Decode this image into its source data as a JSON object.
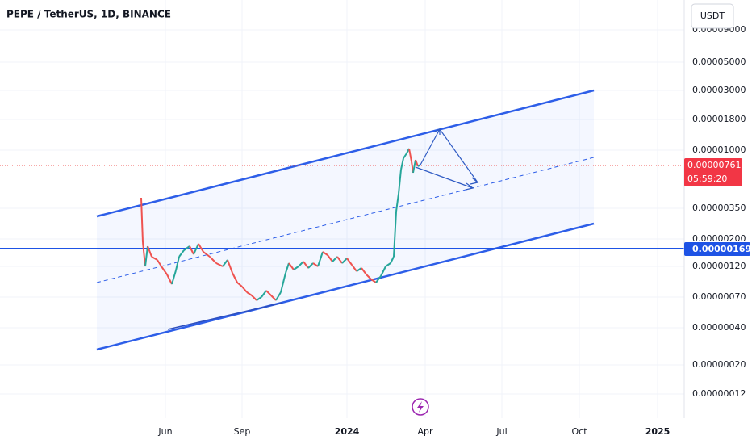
{
  "header": {
    "title": "PEPE / TetherUS, 1D, BINANCE"
  },
  "currency": "USDT",
  "price_axis": [
    "0.00009000",
    "0.00005000",
    "0.00003000",
    "0.00001800",
    "0.00001000",
    "0.00000350",
    "0.00000200",
    "0.00000120",
    "0.00000070",
    "0.00000040",
    "0.00000020",
    "0.00000012"
  ],
  "time_axis": [
    "Jun",
    "Sep",
    "2024",
    "Apr",
    "Jul",
    "Oct",
    "2025"
  ],
  "badges": {
    "last_price": "0.00000761",
    "countdown": "05:59:20",
    "line_price": "0.00000169"
  }
}
